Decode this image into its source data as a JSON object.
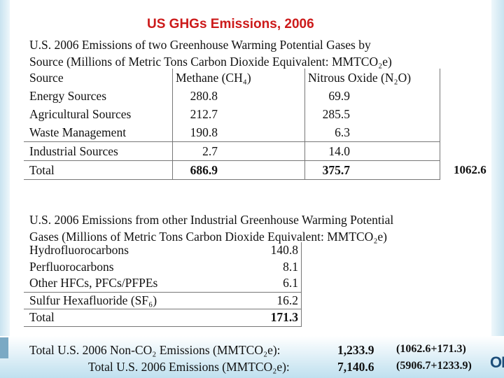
{
  "title": "US GHGs Emissions, 2006",
  "section1": {
    "intro_line1": "U.S. 2006 Emissions of two Greenhouse Warming Potential Gases by",
    "intro_line2": "Source (Millions of Metric Tons Carbon Dioxide Equivalent: MMTCO₂e)",
    "headers": {
      "source": "Source",
      "methane": "Methane (CH₄)",
      "nitrous": "Nitrous Oxide (N₂O)"
    },
    "rows": [
      {
        "source": "Energy Sources",
        "methane": "280.8",
        "nitrous": "69.9"
      },
      {
        "source": "Agricultural Sources",
        "methane": "212.7",
        "nitrous": "285.5"
      },
      {
        "source": "Waste Management",
        "methane": "190.8",
        "nitrous": "6.3"
      },
      {
        "source": "Industrial Sources",
        "methane": "2.7",
        "nitrous": "14.0"
      }
    ],
    "total": {
      "label": "Total",
      "methane": "686.9",
      "nitrous": "375.7"
    },
    "combined_total": "1062.6"
  },
  "section2": {
    "intro_line1": "U.S. 2006 Emissions from other Industrial Greenhouse Warming Potential",
    "intro_line2": "Gases (Millions of Metric Tons Carbon Dioxide Equivalent: MMTCO₂e)",
    "rows": [
      {
        "name": "Hydrofluorocarbons",
        "value": "140.8"
      },
      {
        "name": "Perfluorocarbons",
        "value": "8.1"
      },
      {
        "name": "Other HFCs, PFCs/PFPEs",
        "value": "6.1"
      },
      {
        "name": "Sulfur Hexafluoride (SF₆)",
        "value": "16.2"
      }
    ],
    "total": {
      "label": "Total",
      "value": "171.3"
    }
  },
  "totals": {
    "non_co2_label": "Total U.S. 2006 Non-CO₂ Emissions (MMTCO₂e):",
    "non_co2_value": "1,233.9",
    "non_co2_calc": "(1062.6+171.3)",
    "all_label": "Total U.S. 2006 Emissions (MMTCO₂e):",
    "all_value": "7,140.6",
    "all_calc": "(5906.7+1233.9)"
  },
  "logo_text": "ON"
}
